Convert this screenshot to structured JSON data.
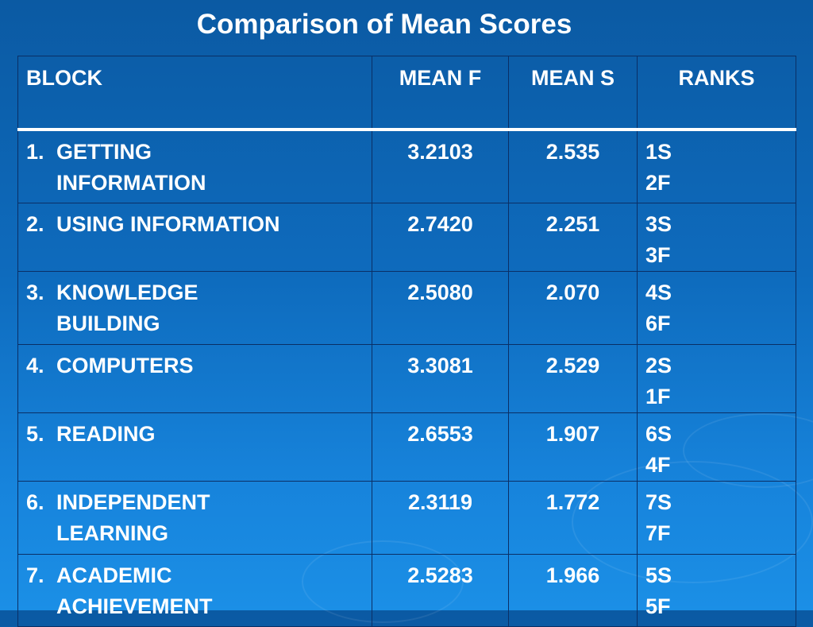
{
  "title": "Comparison of Mean Scores",
  "table": {
    "headers": [
      "BLOCK",
      "MEAN F",
      "MEAN S",
      "RANKS"
    ],
    "rows": [
      {
        "number": "1.",
        "lines": [
          "GETTING",
          "INFORMATION"
        ],
        "mean_f": "3.2103",
        "mean_s": "2.535",
        "ranks": [
          "1S",
          "2F"
        ]
      },
      {
        "number": "2.",
        "lines": [
          "USING INFORMATION"
        ],
        "mean_f": "2.7420",
        "mean_s": "2.251",
        "ranks": [
          "3S",
          "3F"
        ]
      },
      {
        "number": "3.",
        "lines": [
          "KNOWLEDGE",
          "BUILDING"
        ],
        "mean_f": "2.5080",
        "mean_s": "2.070",
        "ranks": [
          "4S",
          "6F"
        ]
      },
      {
        "number": "4.",
        "lines": [
          "COMPUTERS"
        ],
        "mean_f": "3.3081",
        "mean_s": "2.529",
        "ranks": [
          "2S",
          "1F"
        ]
      },
      {
        "number": "5.",
        "lines": [
          "READING"
        ],
        "mean_f": "2.6553",
        "mean_s": "1.907",
        "ranks": [
          "6S",
          "4F"
        ]
      },
      {
        "number": "6.",
        "lines": [
          "INDEPENDENT",
          "LEARNING"
        ],
        "mean_f": "2.3119",
        "mean_s": "1.772",
        "ranks": [
          "7S",
          "7F"
        ]
      },
      {
        "number": "7.",
        "lines": [
          "ACADEMIC",
          "ACHIEVEMENT"
        ],
        "mean_f": "2.5283",
        "mean_s": "1.966",
        "ranks": [
          "5S",
          "5F"
        ]
      }
    ]
  }
}
